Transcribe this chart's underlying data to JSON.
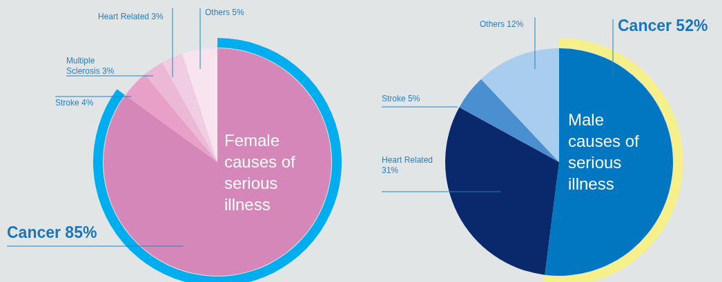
{
  "chart_data": [
    {
      "type": "pie",
      "title": "Female causes of serious illness",
      "categories": [
        "Cancer",
        "Stroke",
        "Multiple Sclerosis",
        "Heart Related",
        "Others"
      ],
      "values": [
        85,
        4,
        3,
        3,
        5
      ],
      "colors": [
        "#d487b8",
        "#e8a0c8",
        "#ebb8d5",
        "#f0cde3",
        "#f7e4ef"
      ],
      "value_labels": [
        "85%",
        "4%",
        "3%",
        "3%",
        "5%"
      ]
    },
    {
      "type": "pie",
      "title": "Male causes of serious illness",
      "categories": [
        "Cancer",
        "Heart Related",
        "Stroke",
        "Others"
      ],
      "values": [
        52,
        31,
        5,
        12
      ],
      "colors": [
        "#0077c0",
        "#0a286c",
        "#4a8fd0",
        "#a8cdee"
      ],
      "value_labels": [
        "52%",
        "31%",
        "5%",
        "12%"
      ]
    }
  ]
}
